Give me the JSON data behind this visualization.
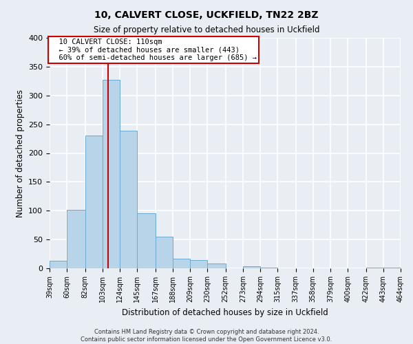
{
  "title": "10, CALVERT CLOSE, UCKFIELD, TN22 2BZ",
  "subtitle": "Size of property relative to detached houses in Uckfield",
  "xlabel": "Distribution of detached houses by size in Uckfield",
  "ylabel": "Number of detached properties",
  "bar_color": "#b8d4e8",
  "bar_edge_color": "#6aaad4",
  "background_color": "#e8eef4",
  "grid_color": "#ffffff",
  "annotation_box_edge": "#cc0000",
  "annotation_line_color": "#cc0000",
  "bins": [
    39,
    60,
    82,
    103,
    124,
    145,
    167,
    188,
    209,
    230,
    252,
    273,
    294,
    315,
    337,
    358,
    379,
    400,
    422,
    443,
    464
  ],
  "counts": [
    13,
    101,
    230,
    327,
    239,
    96,
    55,
    17,
    14,
    8,
    0,
    3,
    1,
    0,
    0,
    0,
    0,
    0,
    1,
    1
  ],
  "property_size": 110,
  "annotation_title": "10 CALVERT CLOSE: 110sqm",
  "annotation_line1": "← 39% of detached houses are smaller (443)",
  "annotation_line2": "60% of semi-detached houses are larger (685) →",
  "ylim": [
    0,
    400
  ],
  "yticks": [
    0,
    50,
    100,
    150,
    200,
    250,
    300,
    350,
    400
  ],
  "footnote1": "Contains HM Land Registry data © Crown copyright and database right 2024.",
  "footnote2": "Contains public sector information licensed under the Open Government Licence v3.0."
}
